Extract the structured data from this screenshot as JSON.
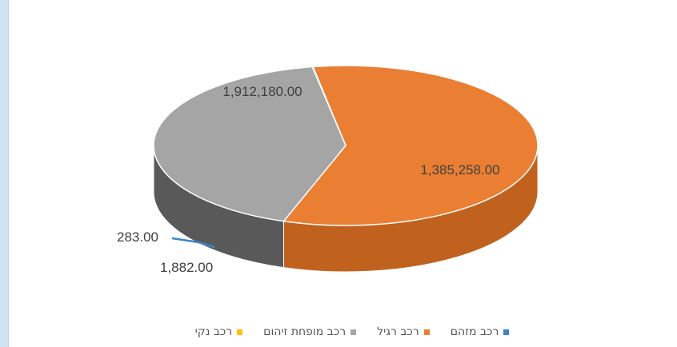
{
  "chart_data": {
    "type": "pie",
    "title": "",
    "slices": [
      {
        "name": "רכב מזהם",
        "value": 1882.0,
        "label": "1,882.00",
        "color": "#3a86c8",
        "side_color": "#2a68a0"
      },
      {
        "name": "רכב רגיל",
        "value": 1912180.0,
        "label": "1,912,180.00",
        "color": "#ea7e32",
        "side_color": "#c0621e"
      },
      {
        "name": "רכב מופחת זיהום",
        "value": 1385258.0,
        "label": "1,385,258.00",
        "color": "#a5a5a5",
        "side_color": "#595959"
      },
      {
        "name": "רכב נקי",
        "value": 283.0,
        "label": "283.00",
        "color": "#ffc000",
        "side_color": "#c99600"
      }
    ],
    "legend": [
      {
        "name": "רכב מזהם",
        "color": "#3a86c8"
      },
      {
        "name": "רכב רגיל",
        "color": "#ea7e32"
      },
      {
        "name": "רכב מופחת זיהום",
        "color": "#a5a5a5"
      },
      {
        "name": "רכב נקי",
        "color": "#ffc000"
      }
    ],
    "legend_position": "bottom",
    "style": "3d-pie"
  }
}
